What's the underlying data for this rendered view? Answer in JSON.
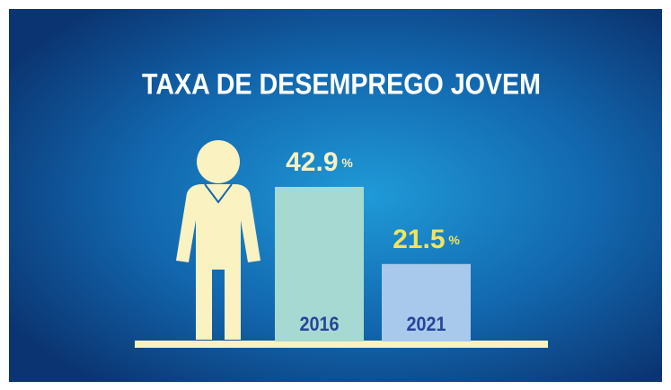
{
  "chart_data": {
    "type": "bar",
    "title": "TAXA DE DESEMPREGO JOVEM",
    "categories": [
      "2016",
      "2021"
    ],
    "values": [
      42.9,
      21.5
    ],
    "value_labels": [
      "42.9 %",
      "21.5 %"
    ],
    "colors": [
      "#a6d9d2",
      "#a8c9ec"
    ],
    "label_colors": [
      "#f6f1c4",
      "#f4e35c"
    ]
  }
}
